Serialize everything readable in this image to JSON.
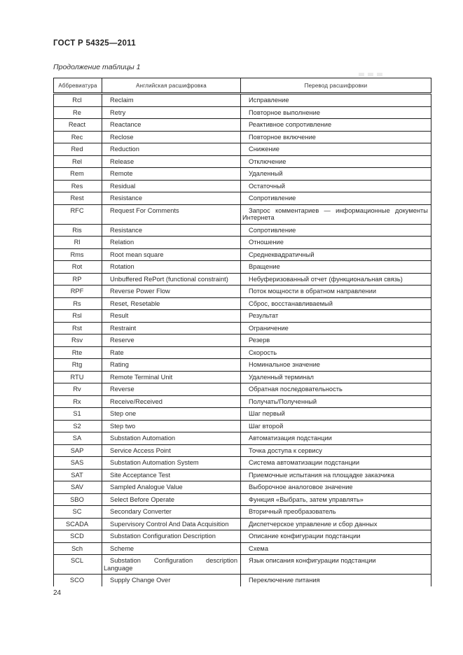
{
  "page": {
    "standard_number": "ГОСТ Р 54325—2011",
    "table_caption": "Продолжение таблицы 1",
    "page_number": "24"
  },
  "colors": {
    "text": "#2b2b2b",
    "border": "#1f1f1f",
    "background": "#ffffff"
  },
  "table": {
    "columns": [
      "Аббревиатура",
      "Английская расшифровка",
      "Перевод расшифровки"
    ],
    "rows": [
      [
        "Rcl",
        "Reclaim",
        "Исправление"
      ],
      [
        "Re",
        "Retry",
        "Повторное выполнение"
      ],
      [
        "React",
        "Reactance",
        "Реактивное сопротивление"
      ],
      [
        "Rec",
        "Reclose",
        "Повторное включение"
      ],
      [
        "Red",
        "Reduction",
        "Снижение"
      ],
      [
        "Rel",
        "Release",
        "Отключение"
      ],
      [
        "Rem",
        "Remote",
        "Удаленный"
      ],
      [
        "Res",
        "Residual",
        "Остаточный"
      ],
      [
        "Rest",
        "Resistance",
        "Сопротивление"
      ],
      [
        "RFC",
        "Request For Comments",
        "Запрос комментариев — информационные документы Интернета"
      ],
      [
        "Ris",
        "Resistance",
        "Сопротивление"
      ],
      [
        "Rl",
        "Relation",
        "Отношение"
      ],
      [
        "Rms",
        "Root mean square",
        "Среднеквадратичный"
      ],
      [
        "Rot",
        "Rotation",
        "Вращение"
      ],
      [
        "RP",
        "Unbuffered RePort (functional constraint)",
        "Небуферизованный отчет (функциональная связь)"
      ],
      [
        "RPF",
        "Reverse Power Flow",
        "Поток мощности в обратном направлении"
      ],
      [
        "Rs",
        "Reset, Resetable",
        "Сброс, восстанавливаемый"
      ],
      [
        "Rsl",
        "Result",
        "Результат"
      ],
      [
        "Rst",
        "Restraint",
        "Ограничение"
      ],
      [
        "Rsv",
        "Reserve",
        "Резерв"
      ],
      [
        "Rte",
        "Rate",
        "Скорость"
      ],
      [
        "Rtg",
        "Rating",
        "Номинальное значение"
      ],
      [
        "RTU",
        "Remote Terminal Unit",
        "Удаленный терминал"
      ],
      [
        "Rv",
        "Reverse",
        "Обратная последовательность"
      ],
      [
        "Rx",
        "Receive/Received",
        "Получать/Полученный"
      ],
      [
        "S1",
        "Step one",
        "Шаг первый"
      ],
      [
        "S2",
        "Step two",
        "Шаг второй"
      ],
      [
        "SA",
        "Substation Automation",
        "Автоматизация подстанции"
      ],
      [
        "SAP",
        "Service Access Point",
        "Точка доступа к сервису"
      ],
      [
        "SAS",
        "Substation Automation System",
        "Система автоматизации подстанции"
      ],
      [
        "SAT",
        "Site Acceptance Test",
        "Приемочные испытания на площадке заказчика"
      ],
      [
        "SAV",
        "Sampled Analogue Value",
        "Выборочное аналоговое значение"
      ],
      [
        "SBO",
        "Select Before Operate",
        "Функция «Выбрать, затем управлять»"
      ],
      [
        "SC",
        "Secondary Converter",
        "Вторичный преобразователь"
      ],
      [
        "SCADA",
        "Supervisory Control And Data Acquisition",
        "Диспетчерское управление и сбор данных"
      ],
      [
        "SCD",
        "Substation Configuration Description",
        "Описание конфигурации подстанции"
      ],
      [
        "Sch",
        "Scheme",
        "Схема"
      ],
      [
        "SCL",
        "Substation Configuration description Language",
        "Язык описания конфигурации подстанции"
      ],
      [
        "SCO",
        "Supply Change Over",
        "Переключение питания"
      ]
    ]
  }
}
